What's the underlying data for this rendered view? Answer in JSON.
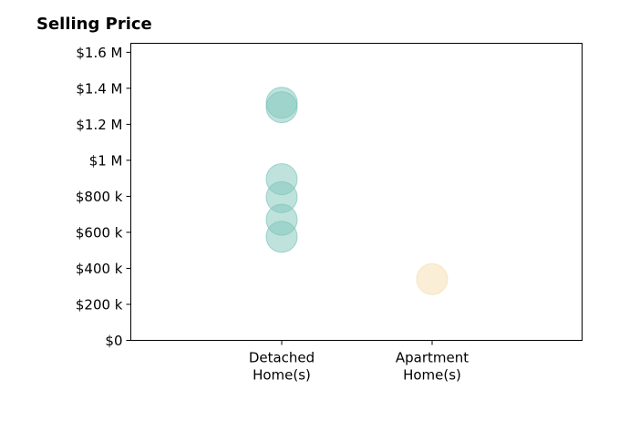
{
  "chart_data": {
    "type": "scatter",
    "title": "Selling Price",
    "categories": [
      "Detached\nHome(s)",
      "Apartment\nHome(s)"
    ],
    "ylim": [
      0,
      1650000
    ],
    "yticks": [
      {
        "value": 0,
        "label": "$0"
      },
      {
        "value": 200000,
        "label": "$200 k"
      },
      {
        "value": 400000,
        "label": "$400 k"
      },
      {
        "value": 600000,
        "label": "$600 k"
      },
      {
        "value": 800000,
        "label": "$800 k"
      },
      {
        "value": 1000000,
        "label": "$1 M"
      },
      {
        "value": 1200000,
        "label": "$1.2 M"
      },
      {
        "value": 1400000,
        "label": "$1.4 M"
      },
      {
        "value": 1600000,
        "label": "$1.6 M"
      }
    ],
    "series": [
      {
        "category": "Detached\nHome(s)",
        "color": "#7fc5bc",
        "values": [
          1320000,
          1295000,
          895000,
          795000,
          670000,
          575000
        ]
      },
      {
        "category": "Apartment\nHome(s)",
        "color": "#f5deb0",
        "values": [
          340000
        ]
      }
    ],
    "grid": false,
    "legend": "none"
  }
}
